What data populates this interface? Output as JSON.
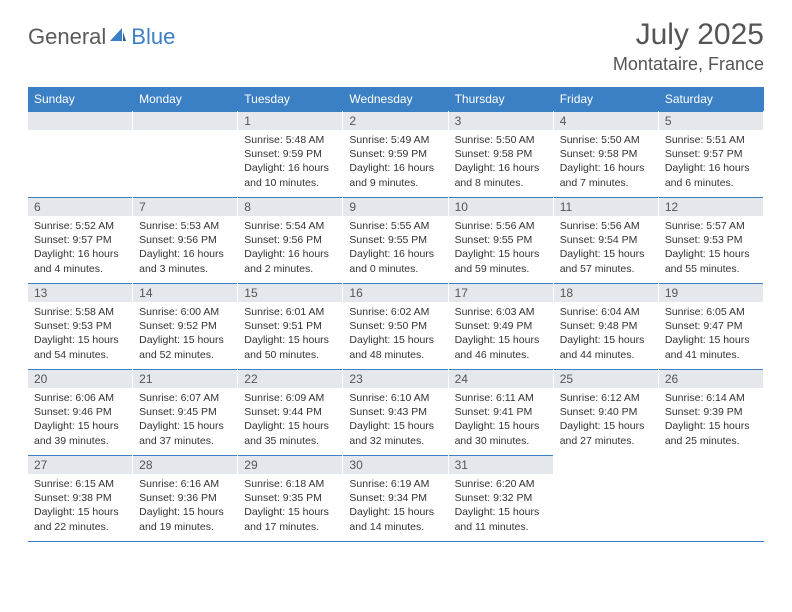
{
  "logo": {
    "part1": "General",
    "part2": "Blue"
  },
  "title": "July 2025",
  "location": "Montataire, France",
  "colors": {
    "header_bg": "#3b7fc4",
    "header_text": "#ffffff",
    "daynum_bg": "#e4e8ec",
    "border": "#3b7fc4",
    "body_text": "#333333",
    "logo_gray": "#5a5a5a",
    "logo_blue": "#3b7fc4"
  },
  "day_headers": [
    "Sunday",
    "Monday",
    "Tuesday",
    "Wednesday",
    "Thursday",
    "Friday",
    "Saturday"
  ],
  "weeks": [
    [
      null,
      null,
      {
        "n": "1",
        "sr": "Sunrise: 5:48 AM",
        "ss": "Sunset: 9:59 PM",
        "dl": "Daylight: 16 hours and 10 minutes."
      },
      {
        "n": "2",
        "sr": "Sunrise: 5:49 AM",
        "ss": "Sunset: 9:59 PM",
        "dl": "Daylight: 16 hours and 9 minutes."
      },
      {
        "n": "3",
        "sr": "Sunrise: 5:50 AM",
        "ss": "Sunset: 9:58 PM",
        "dl": "Daylight: 16 hours and 8 minutes."
      },
      {
        "n": "4",
        "sr": "Sunrise: 5:50 AM",
        "ss": "Sunset: 9:58 PM",
        "dl": "Daylight: 16 hours and 7 minutes."
      },
      {
        "n": "5",
        "sr": "Sunrise: 5:51 AM",
        "ss": "Sunset: 9:57 PM",
        "dl": "Daylight: 16 hours and 6 minutes."
      }
    ],
    [
      {
        "n": "6",
        "sr": "Sunrise: 5:52 AM",
        "ss": "Sunset: 9:57 PM",
        "dl": "Daylight: 16 hours and 4 minutes."
      },
      {
        "n": "7",
        "sr": "Sunrise: 5:53 AM",
        "ss": "Sunset: 9:56 PM",
        "dl": "Daylight: 16 hours and 3 minutes."
      },
      {
        "n": "8",
        "sr": "Sunrise: 5:54 AM",
        "ss": "Sunset: 9:56 PM",
        "dl": "Daylight: 16 hours and 2 minutes."
      },
      {
        "n": "9",
        "sr": "Sunrise: 5:55 AM",
        "ss": "Sunset: 9:55 PM",
        "dl": "Daylight: 16 hours and 0 minutes."
      },
      {
        "n": "10",
        "sr": "Sunrise: 5:56 AM",
        "ss": "Sunset: 9:55 PM",
        "dl": "Daylight: 15 hours and 59 minutes."
      },
      {
        "n": "11",
        "sr": "Sunrise: 5:56 AM",
        "ss": "Sunset: 9:54 PM",
        "dl": "Daylight: 15 hours and 57 minutes."
      },
      {
        "n": "12",
        "sr": "Sunrise: 5:57 AM",
        "ss": "Sunset: 9:53 PM",
        "dl": "Daylight: 15 hours and 55 minutes."
      }
    ],
    [
      {
        "n": "13",
        "sr": "Sunrise: 5:58 AM",
        "ss": "Sunset: 9:53 PM",
        "dl": "Daylight: 15 hours and 54 minutes."
      },
      {
        "n": "14",
        "sr": "Sunrise: 6:00 AM",
        "ss": "Sunset: 9:52 PM",
        "dl": "Daylight: 15 hours and 52 minutes."
      },
      {
        "n": "15",
        "sr": "Sunrise: 6:01 AM",
        "ss": "Sunset: 9:51 PM",
        "dl": "Daylight: 15 hours and 50 minutes."
      },
      {
        "n": "16",
        "sr": "Sunrise: 6:02 AM",
        "ss": "Sunset: 9:50 PM",
        "dl": "Daylight: 15 hours and 48 minutes."
      },
      {
        "n": "17",
        "sr": "Sunrise: 6:03 AM",
        "ss": "Sunset: 9:49 PM",
        "dl": "Daylight: 15 hours and 46 minutes."
      },
      {
        "n": "18",
        "sr": "Sunrise: 6:04 AM",
        "ss": "Sunset: 9:48 PM",
        "dl": "Daylight: 15 hours and 44 minutes."
      },
      {
        "n": "19",
        "sr": "Sunrise: 6:05 AM",
        "ss": "Sunset: 9:47 PM",
        "dl": "Daylight: 15 hours and 41 minutes."
      }
    ],
    [
      {
        "n": "20",
        "sr": "Sunrise: 6:06 AM",
        "ss": "Sunset: 9:46 PM",
        "dl": "Daylight: 15 hours and 39 minutes."
      },
      {
        "n": "21",
        "sr": "Sunrise: 6:07 AM",
        "ss": "Sunset: 9:45 PM",
        "dl": "Daylight: 15 hours and 37 minutes."
      },
      {
        "n": "22",
        "sr": "Sunrise: 6:09 AM",
        "ss": "Sunset: 9:44 PM",
        "dl": "Daylight: 15 hours and 35 minutes."
      },
      {
        "n": "23",
        "sr": "Sunrise: 6:10 AM",
        "ss": "Sunset: 9:43 PM",
        "dl": "Daylight: 15 hours and 32 minutes."
      },
      {
        "n": "24",
        "sr": "Sunrise: 6:11 AM",
        "ss": "Sunset: 9:41 PM",
        "dl": "Daylight: 15 hours and 30 minutes."
      },
      {
        "n": "25",
        "sr": "Sunrise: 6:12 AM",
        "ss": "Sunset: 9:40 PM",
        "dl": "Daylight: 15 hours and 27 minutes."
      },
      {
        "n": "26",
        "sr": "Sunrise: 6:14 AM",
        "ss": "Sunset: 9:39 PM",
        "dl": "Daylight: 15 hours and 25 minutes."
      }
    ],
    [
      {
        "n": "27",
        "sr": "Sunrise: 6:15 AM",
        "ss": "Sunset: 9:38 PM",
        "dl": "Daylight: 15 hours and 22 minutes."
      },
      {
        "n": "28",
        "sr": "Sunrise: 6:16 AM",
        "ss": "Sunset: 9:36 PM",
        "dl": "Daylight: 15 hours and 19 minutes."
      },
      {
        "n": "29",
        "sr": "Sunrise: 6:18 AM",
        "ss": "Sunset: 9:35 PM",
        "dl": "Daylight: 15 hours and 17 minutes."
      },
      {
        "n": "30",
        "sr": "Sunrise: 6:19 AM",
        "ss": "Sunset: 9:34 PM",
        "dl": "Daylight: 15 hours and 14 minutes."
      },
      {
        "n": "31",
        "sr": "Sunrise: 6:20 AM",
        "ss": "Sunset: 9:32 PM",
        "dl": "Daylight: 15 hours and 11 minutes."
      },
      null,
      null
    ]
  ]
}
